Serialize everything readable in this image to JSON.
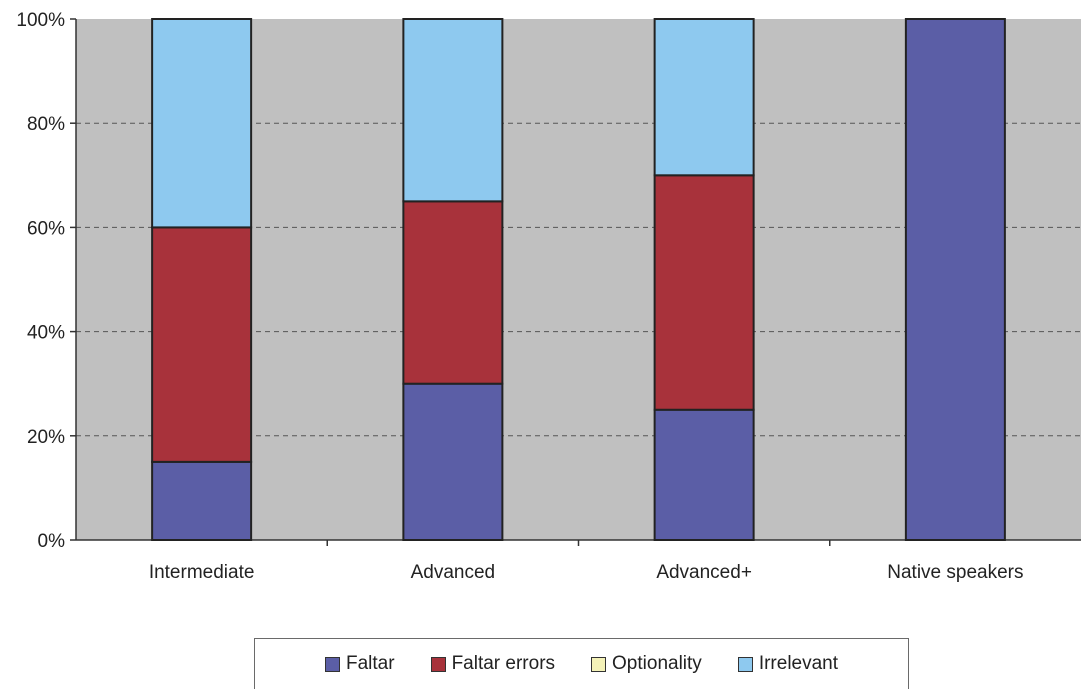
{
  "chart_data": {
    "type": "bar",
    "stacked": true,
    "percent": true,
    "categories": [
      "Intermediate",
      "Advanced",
      "Advanced+",
      "Native speakers"
    ],
    "series": [
      {
        "name": "Faltar",
        "color": "#5b5ea6",
        "values": [
          15,
          30,
          25,
          100
        ]
      },
      {
        "name": "Faltar errors",
        "color": "#a8323b",
        "values": [
          45,
          35,
          45,
          0
        ]
      },
      {
        "name": "Optionality",
        "color": "#f4f2b8",
        "values": [
          0,
          0,
          0,
          0
        ]
      },
      {
        "name": "Irrelevant",
        "color": "#8ec9ef",
        "values": [
          40,
          35,
          30,
          0
        ]
      }
    ],
    "y_ticks": [
      "0%",
      "20%",
      "40%",
      "60%",
      "80%",
      "100%"
    ],
    "ylim": [
      0,
      100
    ],
    "grid": true,
    "legend_position": "bottom",
    "plot_background": "#c0c0c0"
  }
}
